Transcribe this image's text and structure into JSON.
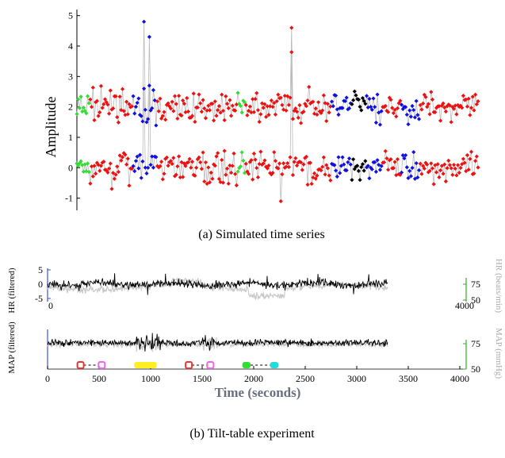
{
  "chart_data": [
    {
      "type": "scatter",
      "ylabel": "Amplitude",
      "caption": "(a) Simulated time series",
      "ylim": [
        -1.4,
        5.2
      ],
      "y_ticks": [
        "-1",
        "0",
        "1",
        "2",
        "3",
        "4",
        "5"
      ],
      "baseline_upper": 2.0,
      "baseline_lower": 0.0,
      "line_color": "#bbbbbb",
      "segments": [
        {
          "color": "#33dd33",
          "start": 0,
          "end": 10
        },
        {
          "color": "#ee1111",
          "start": 10,
          "end": 42
        },
        {
          "color": "#1111dd",
          "start": 42,
          "end": 60
        },
        {
          "color": "#ee1111",
          "start": 60,
          "end": 120
        },
        {
          "color": "#33dd33",
          "start": 120,
          "end": 126
        },
        {
          "color": "#ee1111",
          "start": 126,
          "end": 190
        },
        {
          "color": "#1111dd",
          "start": 190,
          "end": 205
        },
        {
          "color": "#000000",
          "start": 205,
          "end": 216
        },
        {
          "color": "#1111dd",
          "start": 216,
          "end": 228
        },
        {
          "color": "#ee1111",
          "start": 228,
          "end": 242
        },
        {
          "color": "#1111dd",
          "start": 242,
          "end": 256
        },
        {
          "color": "#ee1111",
          "start": 256,
          "end": 300
        }
      ],
      "peaks": [
        {
          "index": 50,
          "upper": 4.8,
          "lower": 2.6
        },
        {
          "index": 54,
          "upper": 4.3,
          "lower": 2.7
        },
        {
          "index": 160,
          "upper": 4.6,
          "lower": 3.8
        },
        {
          "index": 152,
          "upper": 2.3,
          "lower": -1.1
        }
      ]
    },
    {
      "type": "line",
      "ylabel": "HR (filtered)",
      "ylabel_right": "HR (beats/min)",
      "caption": "(b) Tilt-table experiment",
      "xlim": [
        0,
        4000
      ],
      "x_ticks": [
        "0",
        "4000"
      ],
      "y_ticks_left": [
        "5",
        "0",
        "-5"
      ],
      "y_ticks_right": [
        "75",
        "50"
      ],
      "series": [
        {
          "color": "#000000"
        },
        {
          "color": "#c8c8c8"
        }
      ]
    },
    {
      "type": "line",
      "ylabel": "MAP (filtered)",
      "ylabel_right": "MAP (mmHg)",
      "xlabel": "Time (seconds)",
      "xlim": [
        0,
        4000
      ],
      "x_ticks": [
        "0",
        "500",
        "1000",
        "1500",
        "2000",
        "2500",
        "3000",
        "3500",
        "4000"
      ],
      "y_ticks_right": [
        "75",
        "50"
      ],
      "series": [
        {
          "color": "#000000"
        },
        {
          "color": "#c8c8c8"
        }
      ],
      "events": [
        {
          "start": 320,
          "end": 525,
          "color_start": "#ee3333",
          "color_end": "#ee66ee",
          "bar": false
        },
        {
          "start": 840,
          "end": 1060,
          "color": "#ffee22",
          "bar": true
        },
        {
          "start": 1370,
          "end": 1580,
          "color_start": "#ee3333",
          "color_end": "#ee66ee",
          "bar": false
        },
        {
          "start": 1890,
          "end": 1970,
          "color": "#33dd33",
          "bar": true,
          "dash_to": 2160
        },
        {
          "start": 2160,
          "end": 2240,
          "color": "#22dddd",
          "bar": true
        }
      ]
    }
  ]
}
